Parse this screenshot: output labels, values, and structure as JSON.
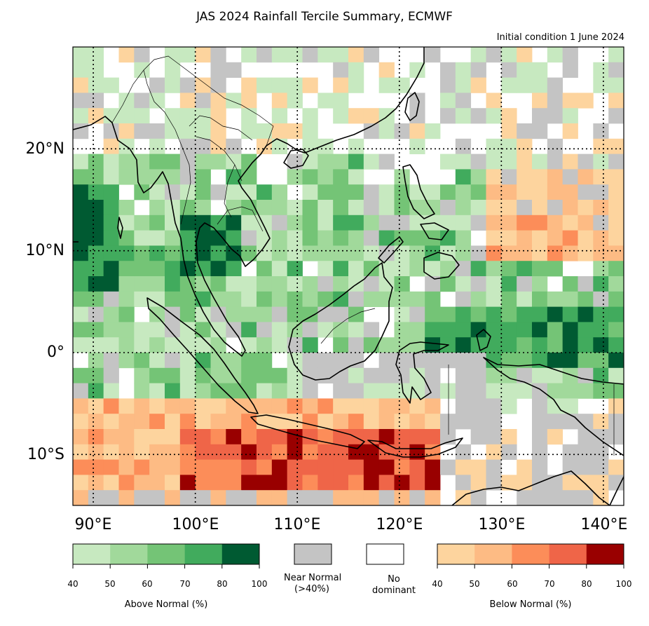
{
  "title": "JAS 2024 Rainfall Tercile Summary, ECMWF",
  "subtitle": "Initial condition 1 June 2024",
  "axes": {
    "lat_ticks": [
      {
        "lat": 20,
        "label": "20°N"
      },
      {
        "lat": 10,
        "label": "10°N"
      },
      {
        "lat": 0,
        "label": "0°"
      },
      {
        "lat": -10,
        "label": "10°S"
      }
    ],
    "lon_ticks": [
      {
        "lon": 90,
        "label": "90°E"
      },
      {
        "lon": 100,
        "label": "100°E"
      },
      {
        "lon": 110,
        "label": "110°E"
      },
      {
        "lon": 120,
        "label": "120°E"
      },
      {
        "lon": 130,
        "label": "130°E"
      },
      {
        "lon": 140,
        "label": "140°E"
      }
    ],
    "lon_range": [
      88,
      142
    ],
    "lat_range": [
      -15,
      30
    ],
    "grid": "dotted"
  },
  "legend": {
    "above": {
      "label": "Above Normal (%)",
      "ticks": [
        "40",
        "50",
        "60",
        "70",
        "80",
        "100"
      ],
      "colors": [
        "#c7e9c0",
        "#a1d99b",
        "#74c476",
        "#41ab5d",
        "#005a32"
      ]
    },
    "near": {
      "label_line1": "Near Normal",
      "label_line2": "(>40%)",
      "color": "#c4c4c4"
    },
    "none": {
      "label_line1": "No",
      "label_line2": "dominant",
      "color": "#ffffff"
    },
    "below": {
      "label": "Below Normal (%)",
      "ticks": [
        "40",
        "50",
        "60",
        "70",
        "80",
        "100"
      ],
      "colors": [
        "#fdd49e",
        "#fdbb84",
        "#fc8d59",
        "#ef6548",
        "#990000"
      ]
    }
  }
}
